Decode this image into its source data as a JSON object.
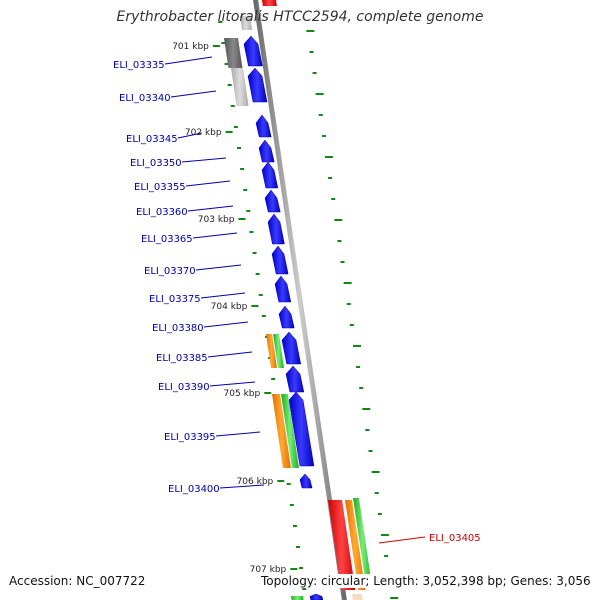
{
  "title": "Erythrobacter litoralis HTCC2594, complete genome",
  "footer": {
    "accession": "Accession: NC_007722",
    "summary": "Topology: circular; Length: 3,052,398 bp; Genes: 3,056"
  },
  "colors": {
    "forward_cds": "#0000ee",
    "pseudo_gene": "#666666",
    "gc_ticks": "#118811",
    "gene_label": "#0000aa",
    "highlight_label": "#cc0000",
    "orange_feature": "#ff8800",
    "green_feature": "#44cc44",
    "red_feature": "#ee0000",
    "backbone": "#888888"
  },
  "icons": {
    "gene_arrow": "arrow-block-icon"
  },
  "scale_labels": [
    "701 kbp",
    "702 kbp",
    "703 kbp",
    "704 kbp",
    "705 kbp",
    "706 kbp",
    "707 kbp"
  ],
  "genes": [
    {
      "label": "ELI_03335",
      "highlight": false
    },
    {
      "label": "ELI_03340",
      "highlight": false
    },
    {
      "label": "ELI_03345",
      "highlight": false
    },
    {
      "label": "ELI_03350",
      "highlight": false
    },
    {
      "label": "ELI_03355",
      "highlight": false
    },
    {
      "label": "ELI_03360",
      "highlight": false
    },
    {
      "label": "ELI_03365",
      "highlight": false
    },
    {
      "label": "ELI_03370",
      "highlight": false
    },
    {
      "label": "ELI_03375",
      "highlight": false
    },
    {
      "label": "ELI_03380",
      "highlight": false
    },
    {
      "label": "ELI_03385",
      "highlight": false
    },
    {
      "label": "ELI_03390",
      "highlight": false
    },
    {
      "label": "ELI_03395",
      "highlight": false
    },
    {
      "label": "ELI_03400",
      "highlight": false
    },
    {
      "label": "ELI_03405",
      "highlight": true
    }
  ]
}
